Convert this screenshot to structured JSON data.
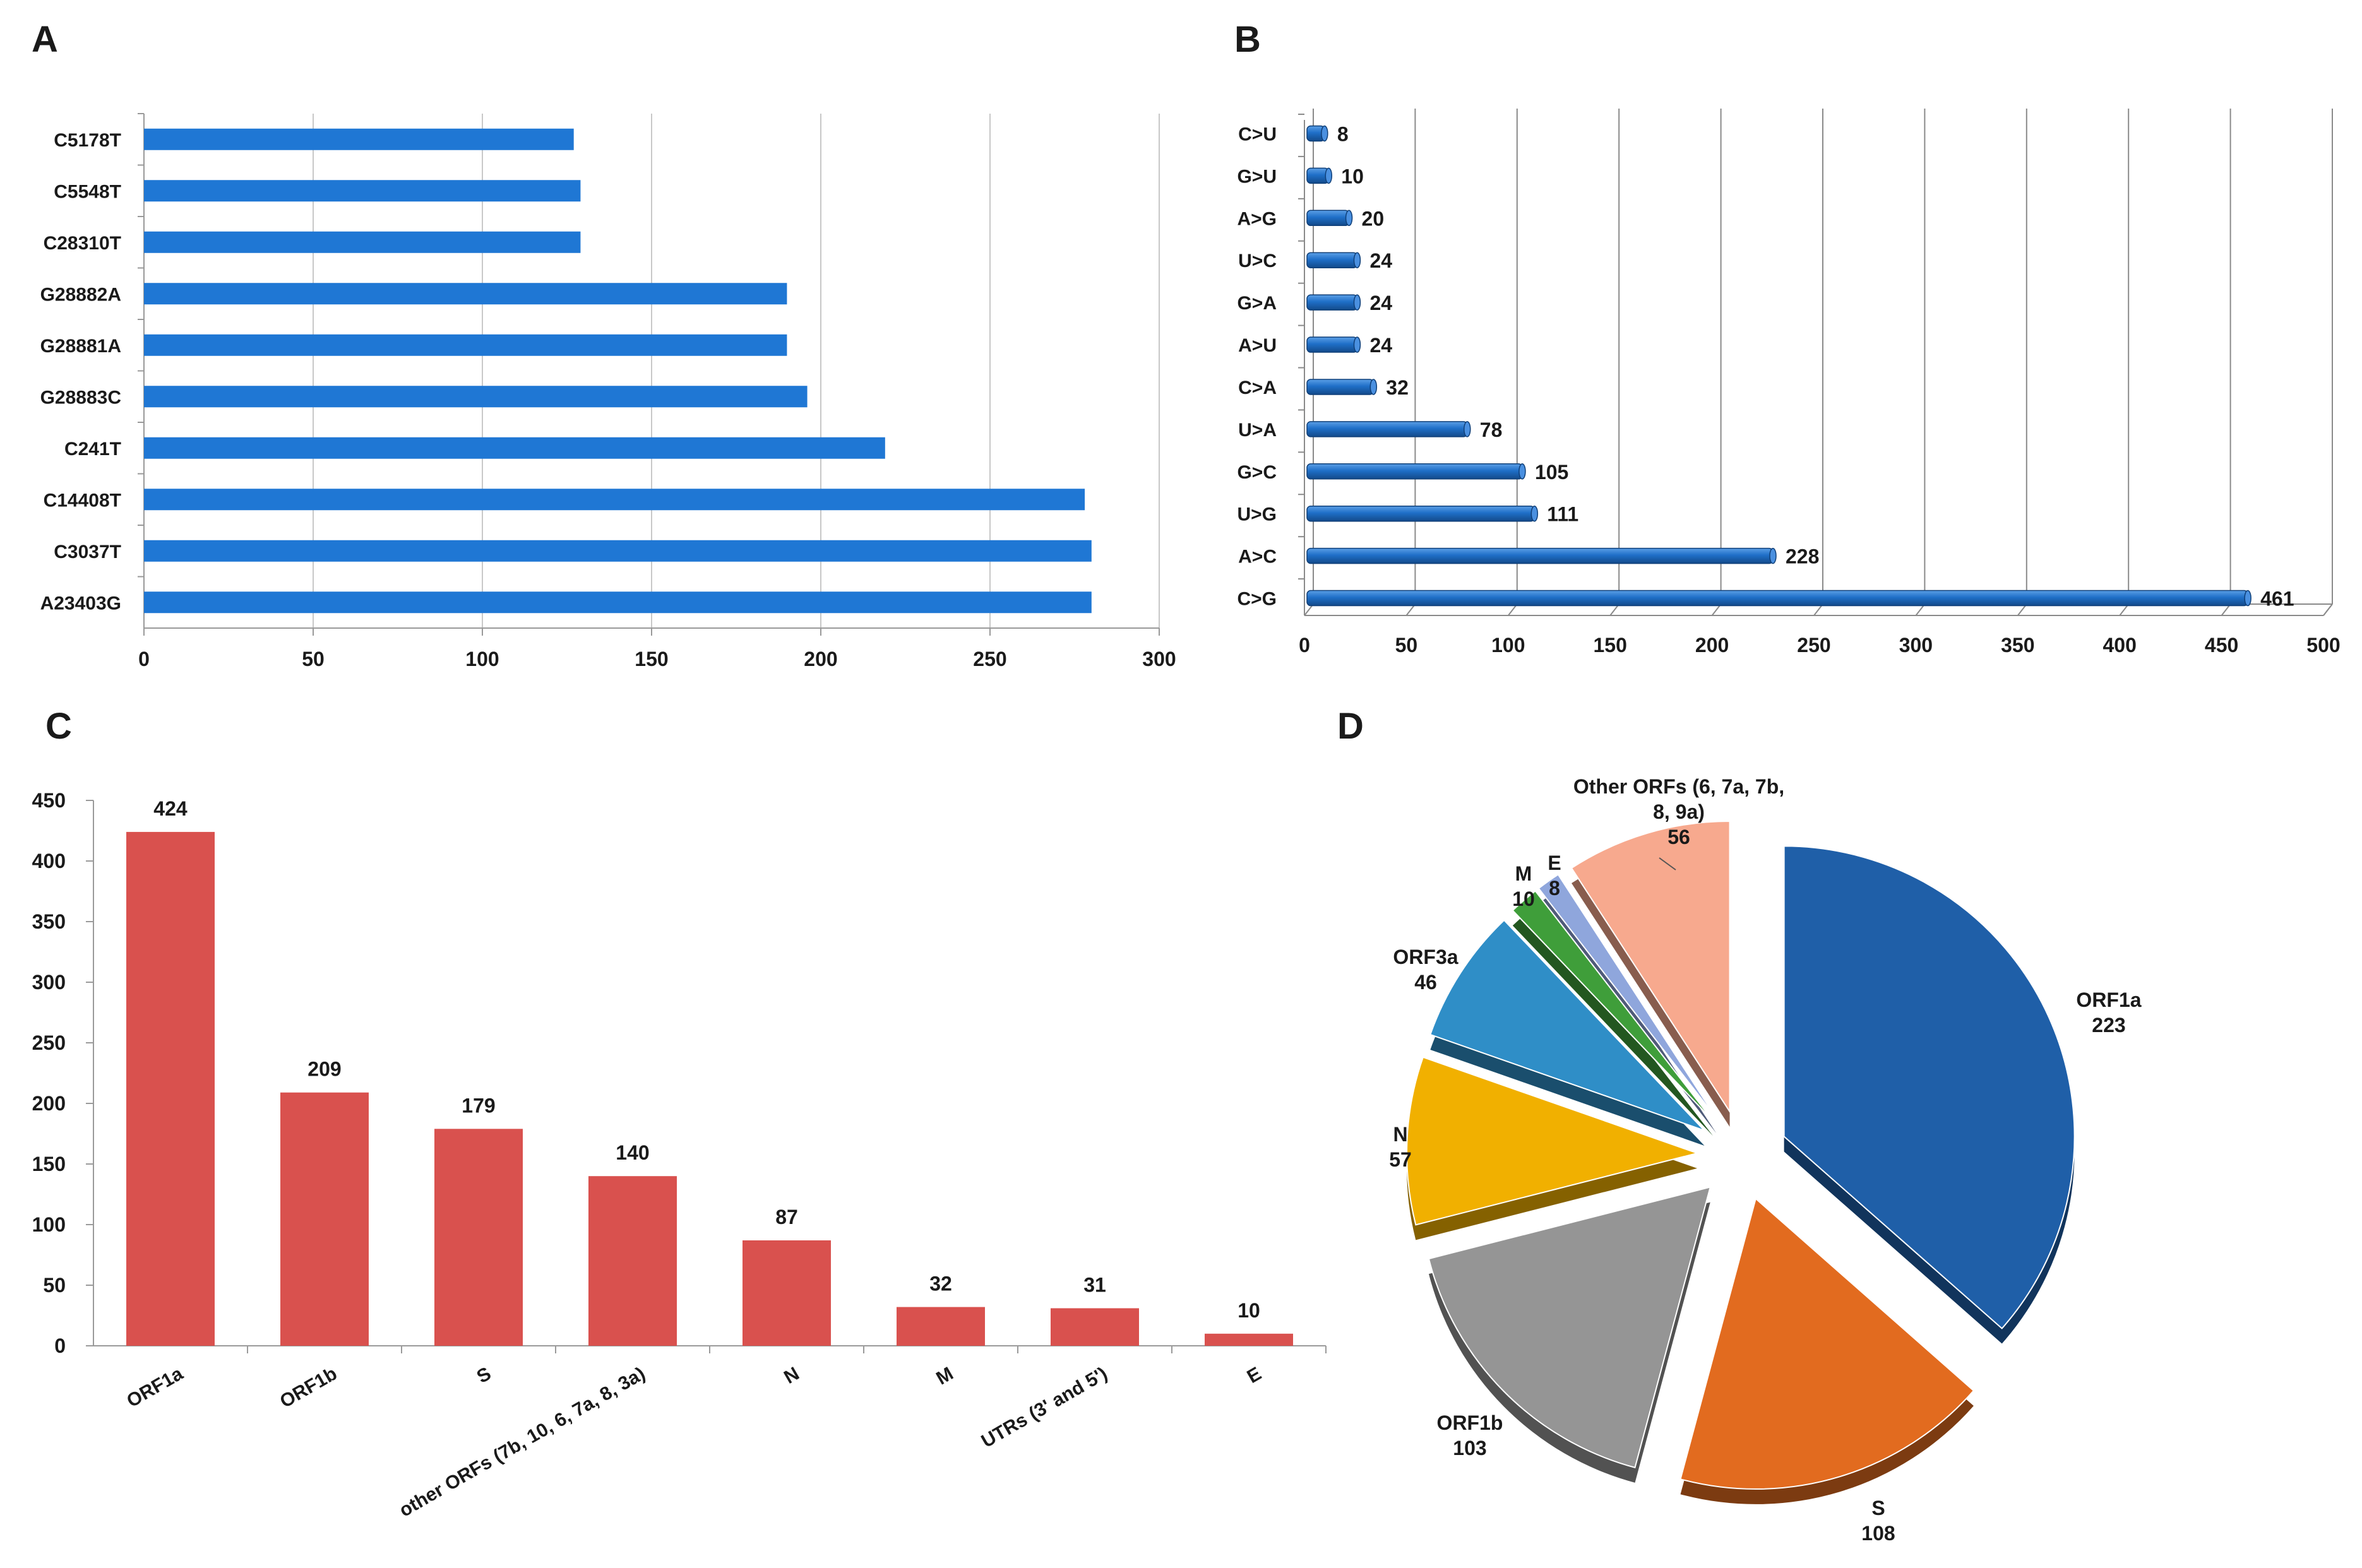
{
  "chart_data": [
    {
      "panel": "A",
      "type": "bar",
      "orientation": "horizontal",
      "categories": [
        "C5178T",
        "C5548T",
        "C28310T",
        "G28882A",
        "G28881A",
        "G28883C",
        "C241T",
        "C14408T",
        "C3037T",
        "A23403G"
      ],
      "values": [
        127,
        129,
        129,
        190,
        190,
        196,
        219,
        278,
        280,
        280
      ],
      "xlim": [
        0,
        300
      ],
      "xticks": [
        0,
        50,
        100,
        150,
        200,
        250,
        300
      ],
      "grid": true,
      "color": "#1f77d4"
    },
    {
      "panel": "B",
      "type": "bar",
      "orientation": "horizontal",
      "style": "3d-cylinder",
      "categories": [
        "C>U",
        "G>U",
        "A>G",
        "U>C",
        "G>A",
        "A>U",
        "C>A",
        "U>A",
        "G>C",
        "U>G",
        "A>C",
        "C>G"
      ],
      "values": [
        8,
        10,
        20,
        24,
        24,
        24,
        32,
        78,
        105,
        111,
        228,
        461
      ],
      "data_labels": [
        "8",
        "10",
        "20",
        "24",
        "24",
        "24",
        "32",
        "78",
        "105",
        "111",
        "228",
        "461"
      ],
      "xlim": [
        0,
        500
      ],
      "xticks": [
        0,
        50,
        100,
        150,
        200,
        250,
        300,
        350,
        400,
        450,
        500
      ],
      "grid": true,
      "color": "#1f6fc8"
    },
    {
      "panel": "C",
      "type": "bar",
      "orientation": "vertical",
      "categories": [
        "ORF1a",
        "ORF1b",
        "S",
        "other ORFs (7b, 10, 6, 7a, 8, 3a)",
        "N",
        "M",
        "UTRs (3' and 5')",
        "E"
      ],
      "values": [
        424,
        209,
        179,
        140,
        87,
        32,
        31,
        10
      ],
      "data_labels": [
        "424",
        "209",
        "179",
        "140",
        "87",
        "32",
        "31",
        "10"
      ],
      "ylim": [
        0,
        450
      ],
      "yticks": [
        0,
        50,
        100,
        150,
        200,
        250,
        300,
        350,
        400,
        450
      ],
      "grid": false,
      "color": "#d9514e"
    },
    {
      "panel": "D",
      "type": "pie",
      "style": "3d-exploded",
      "slices": [
        {
          "name": "ORF1a",
          "value": 223,
          "lines": [
            "ORF1a",
            "223"
          ],
          "color": "#1f5fa8"
        },
        {
          "name": "S",
          "value": 108,
          "lines": [
            "S",
            "108"
          ],
          "color": "#e26b1f"
        },
        {
          "name": "ORF1b",
          "value": 103,
          "lines": [
            "ORF1b",
            "103"
          ],
          "color": "#959595"
        },
        {
          "name": "N",
          "value": 57,
          "lines": [
            "N",
            "57"
          ],
          "color": "#f1b000"
        },
        {
          "name": "ORF3a",
          "value": 46,
          "lines": [
            "ORF3a",
            "46"
          ],
          "color": "#2f8ec7"
        },
        {
          "name": "M",
          "value": 10,
          "lines": [
            "M",
            "10"
          ],
          "color": "#3f9e3a"
        },
        {
          "name": "E",
          "value": 8,
          "lines": [
            "E",
            "8"
          ],
          "color": "#8fa6dc"
        },
        {
          "name": "Other ORFs (6, 7a, 7b, 8, 9a)",
          "value": 56,
          "lines": [
            "Other ORFs (6, 7a, 7b,",
            "8, 9a)",
            "56"
          ],
          "color": "#f7a98e"
        }
      ]
    }
  ]
}
